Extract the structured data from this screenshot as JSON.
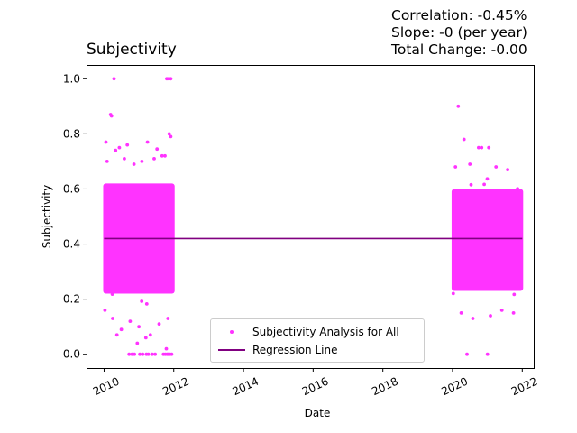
{
  "chart_data": {
    "type": "scatter",
    "title": "Subjectivity",
    "stats": {
      "correlation": "Correlation: -0.45%",
      "slope": "Slope: -0 (per year)",
      "total_change": "Total Change: -0.00"
    },
    "xlabel": "Date",
    "ylabel": "Subjectivity",
    "xlim": [
      "2009-07-01",
      "2022-05-01"
    ],
    "ylim": [
      -0.05,
      1.05
    ],
    "x_ticks": [
      "2010",
      "2012",
      "2014",
      "2016",
      "2018",
      "2020",
      "2022"
    ],
    "y_ticks": [
      "0.0",
      "0.2",
      "0.4",
      "0.6",
      "0.8",
      "1.0"
    ],
    "grid": false,
    "legend_position": "lower-center",
    "series": [
      {
        "name": "Subjectivity Analysis for All",
        "kind": "scatter",
        "color": "#ff33ff",
        "clusters": [
          {
            "x_start": "2010-01-01",
            "x_end": "2012-01-01",
            "y_core_min": 0.22,
            "y_core_max": 0.62,
            "y_mean": 0.42
          },
          {
            "x_start": "2020-01-01",
            "x_end": "2022-01-01",
            "y_core_min": 0.23,
            "y_core_max": 0.6,
            "y_mean": 0.42
          }
        ],
        "outliers": [
          {
            "x": "2010-04-15",
            "y": 1.0
          },
          {
            "x": "2011-10-20",
            "y": 1.0
          },
          {
            "x": "2011-11-10",
            "y": 1.0
          },
          {
            "x": "2011-12-01",
            "y": 1.0
          },
          {
            "x": "2010-03-10",
            "y": 0.87
          },
          {
            "x": "2010-03-20",
            "y": 0.865
          },
          {
            "x": "2011-11-15",
            "y": 0.8
          },
          {
            "x": "2011-12-01",
            "y": 0.79
          },
          {
            "x": "2010-01-20",
            "y": 0.77
          },
          {
            "x": "2011-04-01",
            "y": 0.77
          },
          {
            "x": "2010-06-10",
            "y": 0.75
          },
          {
            "x": "2010-09-01",
            "y": 0.76
          },
          {
            "x": "2010-05-01",
            "y": 0.74
          },
          {
            "x": "2011-07-10",
            "y": 0.745
          },
          {
            "x": "2010-02-01",
            "y": 0.7
          },
          {
            "x": "2011-09-01",
            "y": 0.72
          },
          {
            "x": "2010-08-01",
            "y": 0.71
          },
          {
            "x": "2011-06-10",
            "y": 0.71
          },
          {
            "x": "2010-11-10",
            "y": 0.69
          },
          {
            "x": "2011-02-01",
            "y": 0.7
          },
          {
            "x": "2011-10-01",
            "y": 0.72
          },
          {
            "x": "2010-01-10",
            "y": 0.16
          },
          {
            "x": "2010-04-01",
            "y": 0.13
          },
          {
            "x": "2010-07-01",
            "y": 0.09
          },
          {
            "x": "2010-10-01",
            "y": 0.12
          },
          {
            "x": "2011-01-01",
            "y": 0.1
          },
          {
            "x": "2011-05-01",
            "y": 0.07
          },
          {
            "x": "2011-08-01",
            "y": 0.11
          },
          {
            "x": "2011-11-01",
            "y": 0.13
          },
          {
            "x": "2010-12-15",
            "y": 0.04
          },
          {
            "x": "2011-03-15",
            "y": 0.06
          },
          {
            "x": "2010-05-15",
            "y": 0.07
          },
          {
            "x": "2011-10-15",
            "y": 0.02
          },
          {
            "x": "2010-09-20",
            "y": 0.0
          },
          {
            "x": "2010-10-20",
            "y": 0.0
          },
          {
            "x": "2010-11-15",
            "y": 0.0
          },
          {
            "x": "2011-01-10",
            "y": 0.0
          },
          {
            "x": "2011-02-10",
            "y": 0.0
          },
          {
            "x": "2011-03-20",
            "y": 0.0
          },
          {
            "x": "2011-04-10",
            "y": 0.0
          },
          {
            "x": "2011-05-20",
            "y": 0.0
          },
          {
            "x": "2011-06-20",
            "y": 0.0
          },
          {
            "x": "2011-09-15",
            "y": 0.0
          },
          {
            "x": "2011-10-05",
            "y": 0.0
          },
          {
            "x": "2011-10-25",
            "y": 0.0
          },
          {
            "x": "2011-11-05",
            "y": 0.0
          },
          {
            "x": "2011-11-20",
            "y": 0.0
          },
          {
            "x": "2011-12-10",
            "y": 0.0
          },
          {
            "x": "2020-03-01",
            "y": 0.9
          },
          {
            "x": "2020-05-01",
            "y": 0.78
          },
          {
            "x": "2020-10-01",
            "y": 0.75
          },
          {
            "x": "2020-11-01",
            "y": 0.75
          },
          {
            "x": "2021-01-15",
            "y": 0.75
          },
          {
            "x": "2020-02-01",
            "y": 0.68
          },
          {
            "x": "2020-07-01",
            "y": 0.69
          },
          {
            "x": "2021-04-01",
            "y": 0.68
          },
          {
            "x": "2021-08-01",
            "y": 0.67
          },
          {
            "x": "2020-04-01",
            "y": 0.15
          },
          {
            "x": "2020-08-01",
            "y": 0.13
          },
          {
            "x": "2021-02-01",
            "y": 0.14
          },
          {
            "x": "2021-06-01",
            "y": 0.16
          },
          {
            "x": "2021-10-01",
            "y": 0.15
          },
          {
            "x": "2020-06-01",
            "y": 0.0
          },
          {
            "x": "2021-01-01",
            "y": 0.0
          }
        ]
      },
      {
        "name": "Regression Line",
        "kind": "line",
        "color": "#800080",
        "points": [
          {
            "x": "2010-01-01",
            "y": 0.42
          },
          {
            "x": "2022-01-01",
            "y": 0.42
          }
        ]
      }
    ]
  }
}
